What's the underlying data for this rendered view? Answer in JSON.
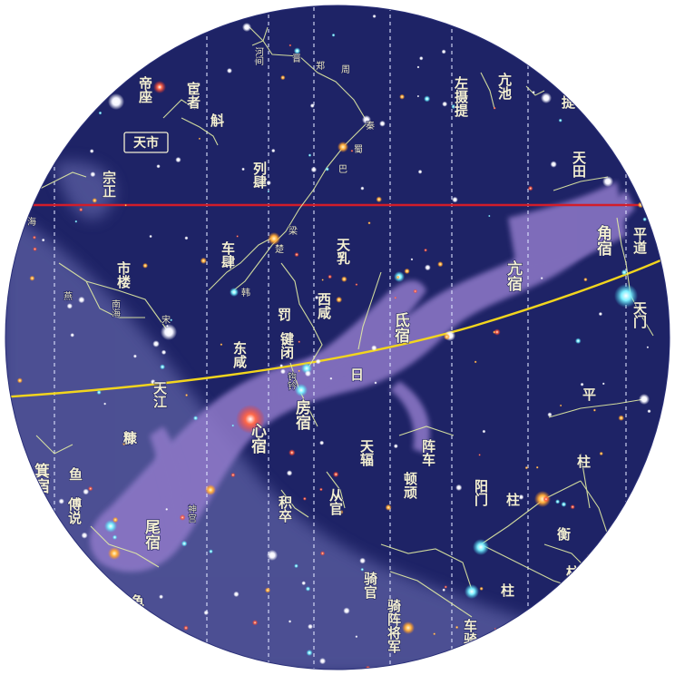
{
  "colors": {
    "sky": "#1e2366",
    "milky_way": "#5b5fa3",
    "dragon": "#8f79c9",
    "equator": "#d21d2a",
    "ecliptic": "#f2d51e",
    "meridian": "#dfe4ff",
    "constellation_line": "#e3eda4",
    "label": "#f3efd2"
  },
  "map": {
    "boxed_label": "天市",
    "ecliptic_label": "日",
    "mansions": [
      {
        "key": "jiao",
        "text": "角宿"
      },
      {
        "key": "kang",
        "text": "亢宿"
      },
      {
        "key": "di",
        "text": "氐宿"
      },
      {
        "key": "fang",
        "text": "房宿"
      },
      {
        "key": "xin",
        "text": "心宿"
      },
      {
        "key": "wei",
        "text": "尾宿"
      },
      {
        "key": "ji",
        "text": "箕宿"
      }
    ],
    "asterisms": [
      {
        "key": "dizuo",
        "text": "帝座"
      },
      {
        "key": "huanzhe",
        "text": "宦者"
      },
      {
        "key": "hu",
        "text": "斛"
      },
      {
        "key": "zongzheng",
        "text": "宗正"
      },
      {
        "key": "hai",
        "text": "海"
      },
      {
        "key": "liesi",
        "text": "列肆"
      },
      {
        "key": "chesi",
        "text": "车肆"
      },
      {
        "key": "shilou",
        "text": "市楼"
      },
      {
        "key": "yan",
        "text": "燕"
      },
      {
        "key": "nanhai",
        "text": "南海"
      },
      {
        "key": "song",
        "text": "宋"
      },
      {
        "key": "liang",
        "text": "梁"
      },
      {
        "key": "chu",
        "text": "楚"
      },
      {
        "key": "han",
        "text": "韩"
      },
      {
        "key": "ba",
        "text": "巴"
      },
      {
        "key": "shu",
        "text": "蜀"
      },
      {
        "key": "qin",
        "text": "秦"
      },
      {
        "key": "zhou",
        "text": "周"
      },
      {
        "key": "zheng",
        "text": "郑"
      },
      {
        "key": "jin",
        "text": "晋"
      },
      {
        "key": "hejian",
        "text": "河间"
      },
      {
        "key": "zuosheti",
        "text": "左摄提"
      },
      {
        "key": "kangchi",
        "text": "亢池"
      },
      {
        "key": "ti",
        "text": "提"
      },
      {
        "key": "tiantian",
        "text": "天田"
      },
      {
        "key": "pingdao",
        "text": "平道"
      },
      {
        "key": "tianmen",
        "text": "天门"
      },
      {
        "key": "tianru",
        "text": "天乳"
      },
      {
        "key": "xixian",
        "text": "西咸"
      },
      {
        "key": "fa",
        "text": "罚"
      },
      {
        "key": "jianbi",
        "text": "键闭"
      },
      {
        "key": "gouqian",
        "text": "钩钤"
      },
      {
        "key": "dongxian",
        "text": "东咸"
      },
      {
        "key": "tianjiang",
        "text": "天江"
      },
      {
        "key": "kang2",
        "text": "糠"
      },
      {
        "key": "yu",
        "text": "鱼"
      },
      {
        "key": "fushuo",
        "text": "傅说"
      },
      {
        "key": "shengong",
        "text": "神宫"
      },
      {
        "key": "jizu",
        "text": "积卒"
      },
      {
        "key": "conguan",
        "text": "从官"
      },
      {
        "key": "tianfu",
        "text": "天辐"
      },
      {
        "key": "zhenche",
        "text": "阵车"
      },
      {
        "key": "dunwan",
        "text": "顿顽"
      },
      {
        "key": "yangmen",
        "text": "阳门"
      },
      {
        "key": "ping",
        "text": "平"
      },
      {
        "key": "zhu1",
        "text": "柱"
      },
      {
        "key": "zhu2",
        "text": "柱"
      },
      {
        "key": "zhu3",
        "text": "柱"
      },
      {
        "key": "zhu4",
        "text": "柱"
      },
      {
        "key": "heng",
        "text": "衡"
      },
      {
        "key": "qiguan",
        "text": "骑官"
      },
      {
        "key": "qizhenjiangjun",
        "text": "骑阵将军"
      },
      {
        "key": "cheqi",
        "text": "车骑"
      },
      {
        "key": "gui",
        "text": "龟"
      }
    ]
  }
}
